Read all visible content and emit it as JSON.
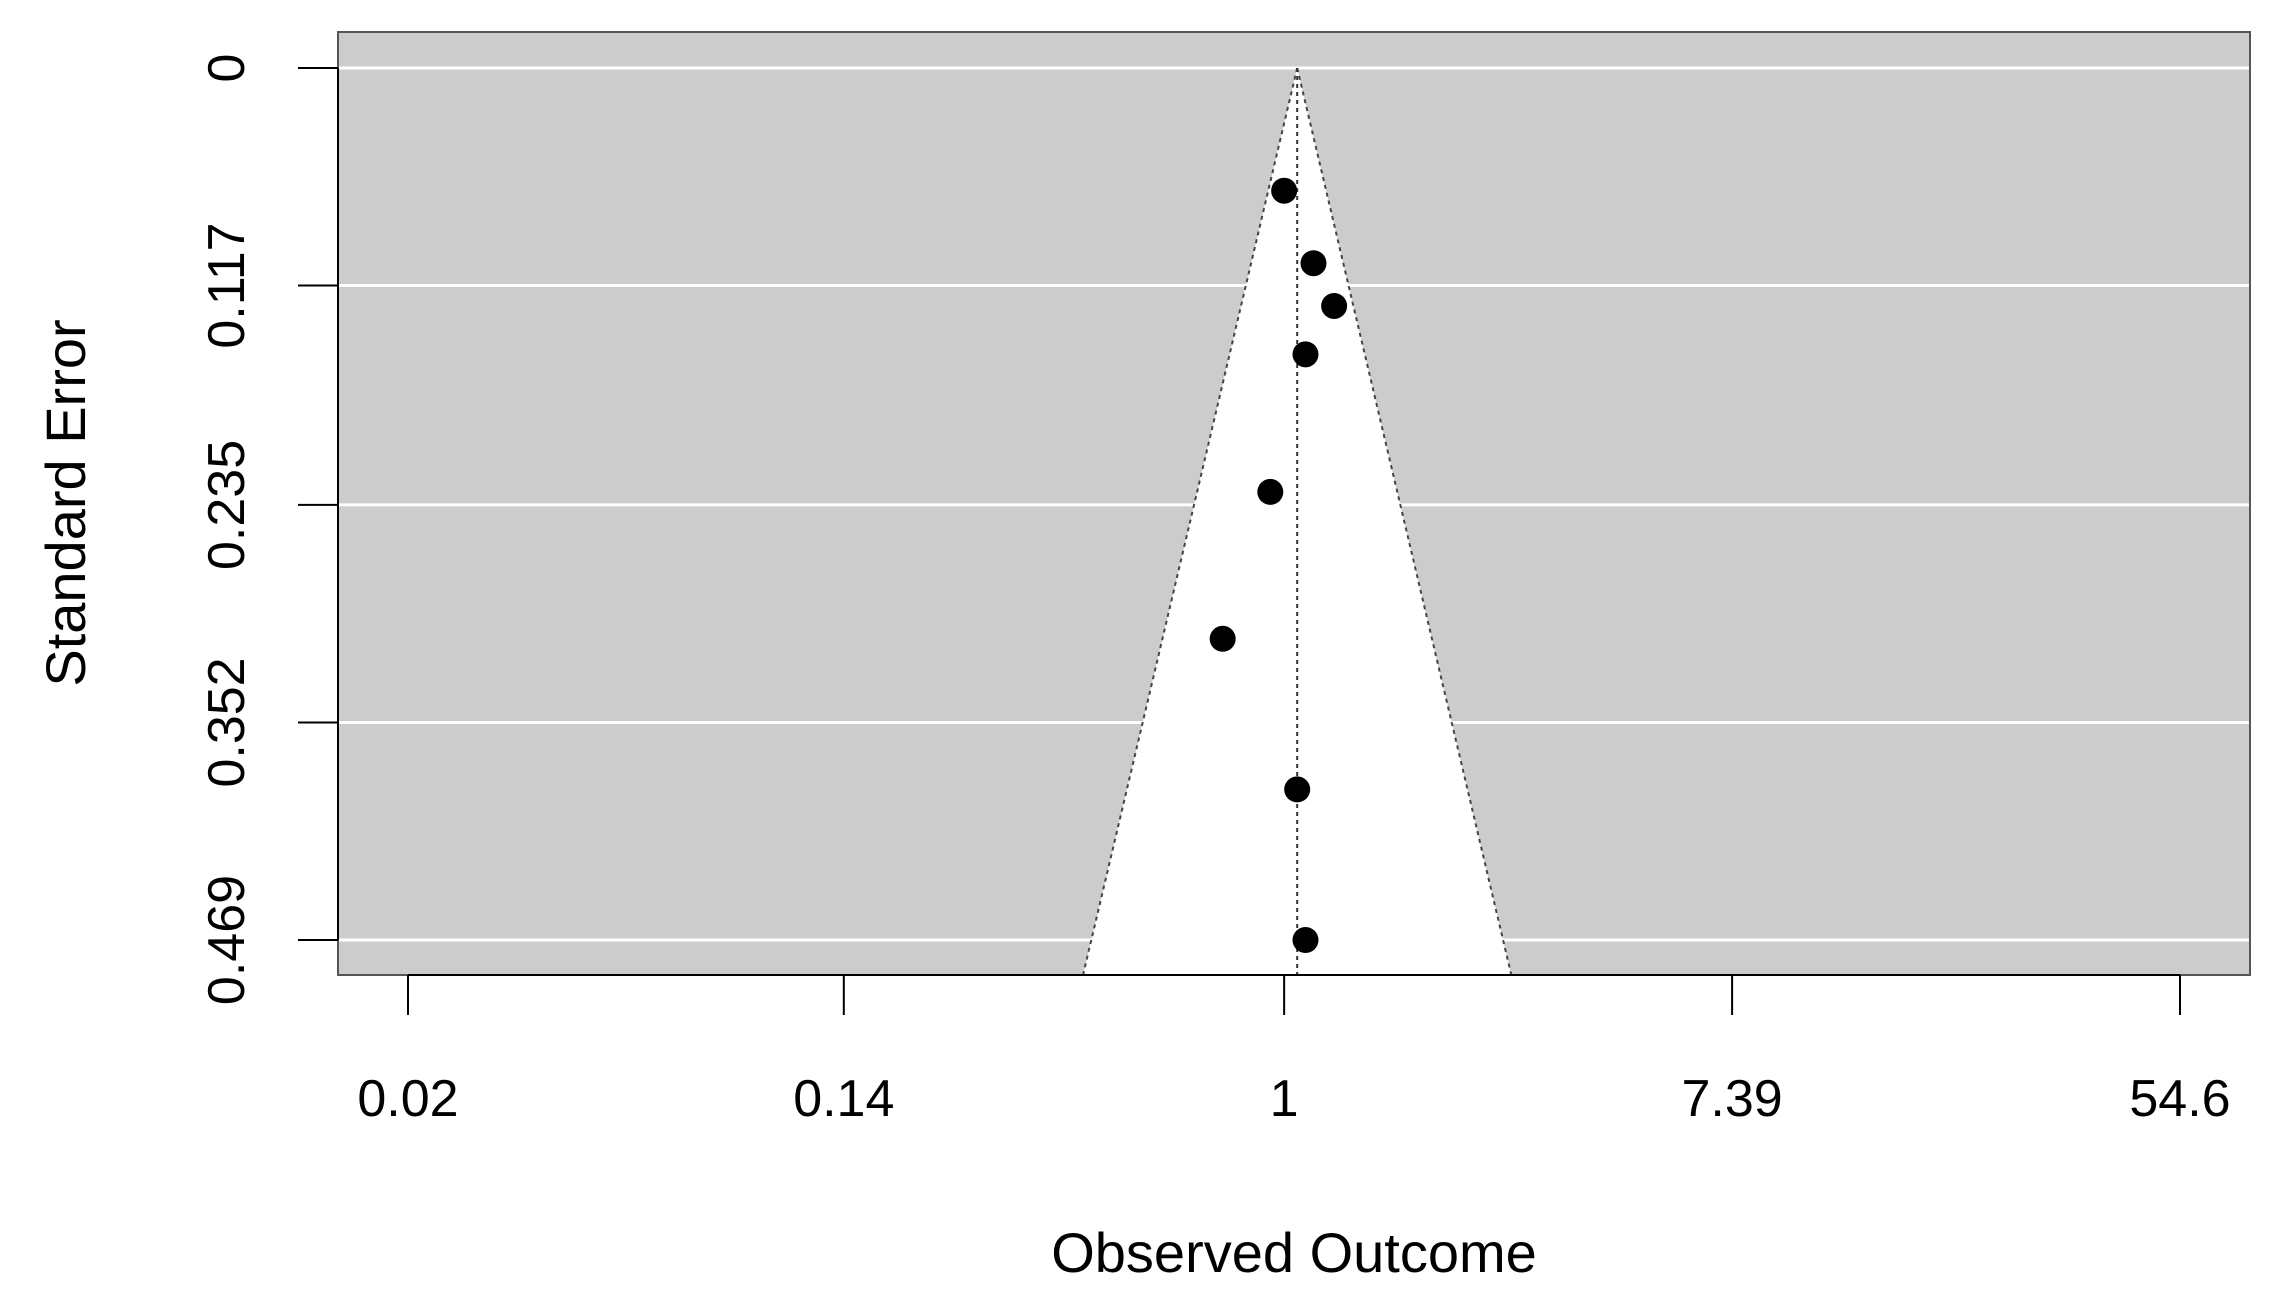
{
  "chart_data": {
    "type": "scatter",
    "subtype": "funnel",
    "title": "",
    "xlabel": "Observed Outcome",
    "ylabel": "Standard Error",
    "x_scale": "log",
    "xlim": [
      0.0135,
      100
    ],
    "ylim": [
      0.469,
      0
    ],
    "y_reversed": true,
    "x_ticks": [
      {
        "value": 0.02,
        "label": "0.02"
      },
      {
        "value": 0.14,
        "label": "0.14"
      },
      {
        "value": 1,
        "label": "1"
      },
      {
        "value": 7.39,
        "label": "7.39"
      },
      {
        "value": 54.6,
        "label": "54.6"
      }
    ],
    "y_ticks": [
      {
        "value": 0,
        "label": "0"
      },
      {
        "value": 0.117,
        "label": "0.117"
      },
      {
        "value": 0.235,
        "label": "0.235"
      },
      {
        "value": 0.352,
        "label": "0.352"
      },
      {
        "value": 0.469,
        "label": "0.469"
      }
    ],
    "summary_estimate": 1.06,
    "funnel": {
      "z": 1.96
    },
    "points": [
      {
        "x": 1.0,
        "y": 0.066
      },
      {
        "x": 1.14,
        "y": 0.105
      },
      {
        "x": 1.25,
        "y": 0.128
      },
      {
        "x": 1.1,
        "y": 0.154
      },
      {
        "x": 0.94,
        "y": 0.228
      },
      {
        "x": 0.76,
        "y": 0.307
      },
      {
        "x": 1.06,
        "y": 0.388
      },
      {
        "x": 1.1,
        "y": 0.469
      }
    ],
    "grid": true,
    "colors": {
      "background": "#cccccc",
      "funnel": "#ffffff",
      "gridlines": "#ffffff",
      "points": "#000000"
    }
  }
}
